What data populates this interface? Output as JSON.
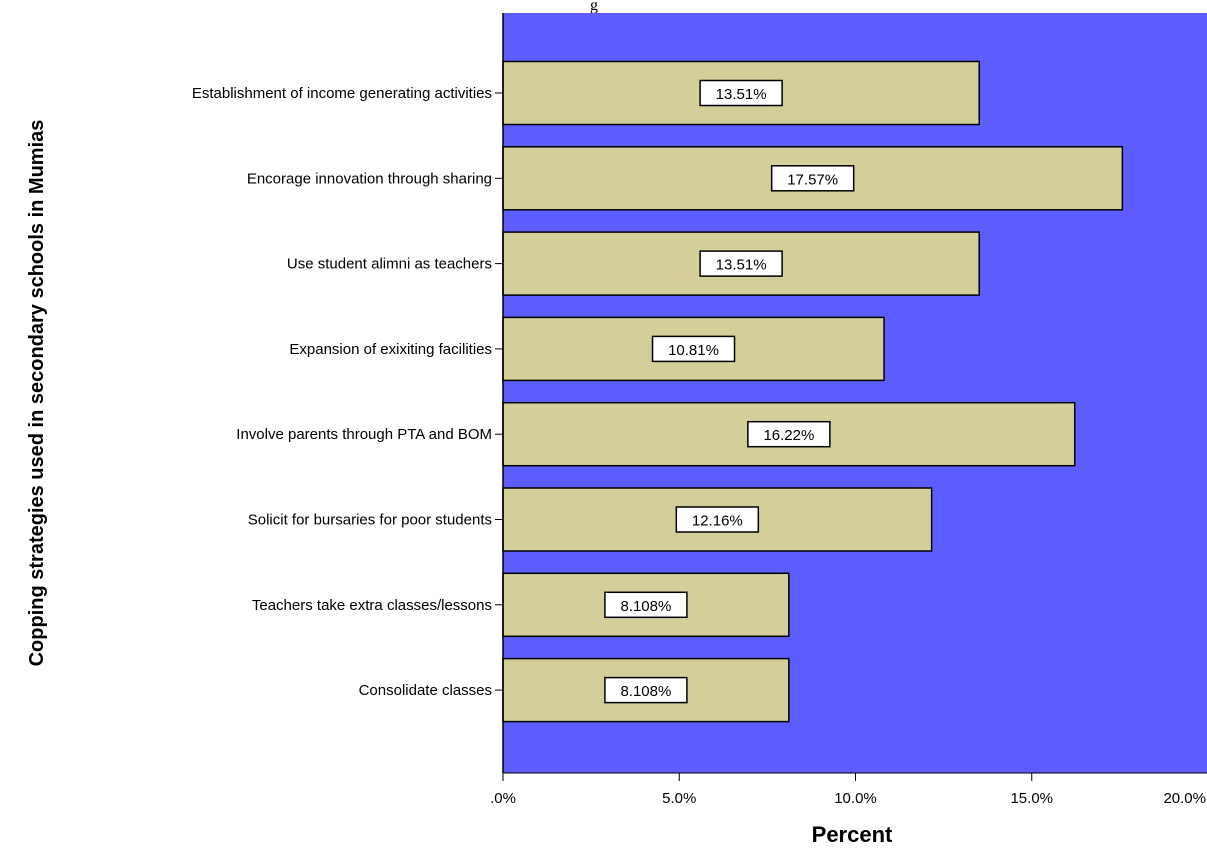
{
  "chart_data": {
    "type": "bar",
    "orientation": "horizontal",
    "top_text": "g",
    "categories": [
      "Establishment of income generating activities",
      "Encorage innovation through sharing",
      "Use student alimni as teachers",
      "Expansion of exixiting facilities",
      "Involve parents through PTA and BOM",
      "Solicit for bursaries for poor students",
      "Teachers take extra classes/lessons",
      "Consolidate classes"
    ],
    "values": [
      13.51,
      17.57,
      13.51,
      10.81,
      16.22,
      12.16,
      8.108,
      8.108
    ],
    "data_labels": [
      "13.51%",
      "17.57%",
      "13.51%",
      "10.81%",
      "16.22%",
      "12.16%",
      "8.108%",
      "8.108%"
    ],
    "xlabel": "Percent",
    "ylabel": "Copping strategies used in secondary schools in Mumias",
    "xlim": [
      0,
      20
    ],
    "xticks": [
      ".0%",
      "5.0%",
      "10.0%",
      "15.0%",
      "20.0%"
    ],
    "grid": false,
    "colors": {
      "plot_background": "#5c5cff",
      "bar_fill": "#d4cf9a",
      "bar_stroke": "#000000",
      "label_box": "#ffffff"
    }
  }
}
